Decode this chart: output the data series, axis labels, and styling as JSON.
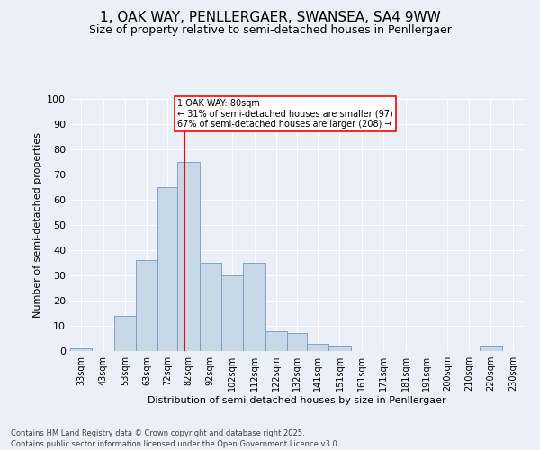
{
  "title": "1, OAK WAY, PENLLERGAER, SWANSEA, SA4 9WW",
  "subtitle": "Size of property relative to semi-detached houses in Penllergaer",
  "xlabel": "Distribution of semi-detached houses by size in Penllergaer",
  "ylabel": "Number of semi-detached properties",
  "bar_color": "#c8d8e8",
  "bar_edge_color": "#7799bb",
  "annotation_text": "1 OAK WAY: 80sqm\n← 31% of semi-detached houses are smaller (97)\n67% of semi-detached houses are larger (208) →",
  "vline_x": 80,
  "vline_color": "red",
  "footer": "Contains HM Land Registry data © Crown copyright and database right 2025.\nContains public sector information licensed under the Open Government Licence v3.0.",
  "categories": [
    "33sqm",
    "43sqm",
    "53sqm",
    "63sqm",
    "72sqm",
    "82sqm",
    "92sqm",
    "102sqm",
    "112sqm",
    "122sqm",
    "132sqm",
    "141sqm",
    "151sqm",
    "161sqm",
    "171sqm",
    "181sqm",
    "191sqm",
    "200sqm",
    "210sqm",
    "220sqm",
    "230sqm"
  ],
  "bin_edges": [
    28,
    38,
    48,
    58,
    68,
    77,
    87,
    97,
    107,
    117,
    127,
    136,
    146,
    156,
    166,
    176,
    186,
    195,
    205,
    215,
    225,
    235
  ],
  "values": [
    1,
    0,
    14,
    36,
    65,
    75,
    35,
    30,
    35,
    8,
    7,
    3,
    2,
    0,
    0,
    0,
    0,
    0,
    0,
    2,
    0
  ],
  "ylim": [
    0,
    100
  ],
  "yticks": [
    0,
    10,
    20,
    30,
    40,
    50,
    60,
    70,
    80,
    90,
    100
  ],
  "background_color": "#eaeff8",
  "grid_color": "white",
  "title_fontsize": 11,
  "subtitle_fontsize": 9,
  "xlabel_fontsize": 8,
  "ylabel_fontsize": 8,
  "annotation_box_color": "white",
  "annotation_box_edge": "red",
  "footer_fontsize": 6
}
